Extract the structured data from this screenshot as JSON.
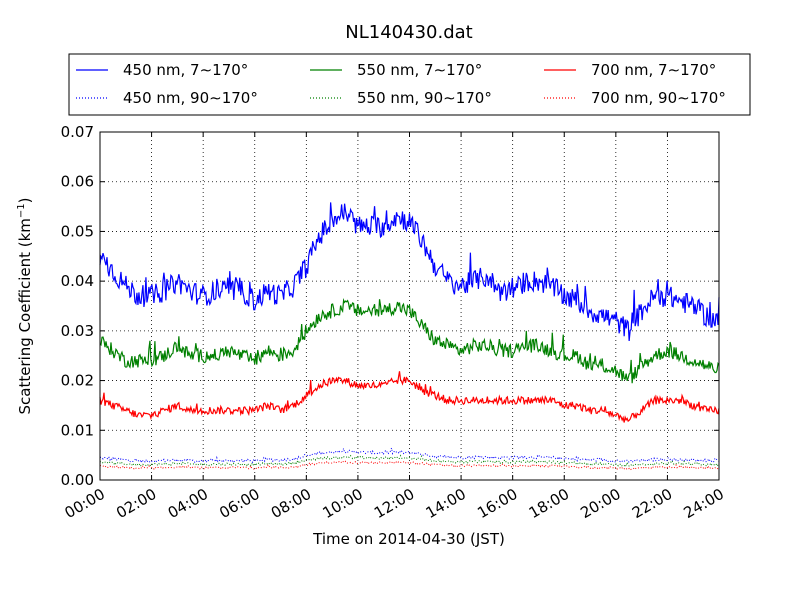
{
  "chart_data": {
    "type": "line",
    "title": "NL140430.dat",
    "xlabel": "Time on 2014-04-30 (JST)",
    "ylabel": "Scattering Coefficient (km",
    "ylabel_sup": "−1",
    "ylabel_close": ")",
    "x_ticks": [
      "00:00",
      "02:00",
      "04:00",
      "06:00",
      "08:00",
      "10:00",
      "12:00",
      "14:00",
      "16:00",
      "18:00",
      "20:00",
      "22:00",
      "24:00"
    ],
    "y_ticks": [
      "0.00",
      "0.01",
      "0.02",
      "0.03",
      "0.04",
      "0.05",
      "0.06",
      "0.07"
    ],
    "xlim_hours": [
      0,
      24
    ],
    "ylim": [
      0,
      0.07
    ],
    "grid": true,
    "legend_placement": "top, above plot",
    "x_hours": [
      0,
      0.5,
      1,
      1.5,
      2,
      2.5,
      3,
      3.5,
      4,
      4.5,
      5,
      5.5,
      6,
      6.5,
      7,
      7.5,
      8,
      8.5,
      9,
      9.5,
      10,
      10.5,
      11,
      11.5,
      12,
      12.5,
      13,
      13.5,
      14,
      14.5,
      15,
      15.5,
      16,
      16.5,
      17,
      17.5,
      18,
      18.5,
      19,
      19.5,
      20,
      20.5,
      21,
      21.5,
      22,
      22.5,
      23,
      23.5,
      24
    ],
    "series": [
      {
        "name": "450 nm, 7∼170°",
        "color": "#0000ff",
        "style": "solid",
        "noise": 0.0022,
        "values": [
          0.045,
          0.042,
          0.039,
          0.037,
          0.037,
          0.038,
          0.04,
          0.038,
          0.037,
          0.038,
          0.038,
          0.038,
          0.036,
          0.038,
          0.037,
          0.039,
          0.043,
          0.049,
          0.052,
          0.054,
          0.051,
          0.051,
          0.051,
          0.053,
          0.052,
          0.048,
          0.043,
          0.04,
          0.039,
          0.04,
          0.041,
          0.038,
          0.038,
          0.04,
          0.04,
          0.039,
          0.037,
          0.036,
          0.034,
          0.033,
          0.032,
          0.03,
          0.034,
          0.037,
          0.037,
          0.036,
          0.035,
          0.033,
          0.032
        ]
      },
      {
        "name": "550 nm, 7∼170°",
        "color": "#008000",
        "style": "solid",
        "noise": 0.0014,
        "values": [
          0.028,
          0.026,
          0.024,
          0.024,
          0.024,
          0.025,
          0.027,
          0.025,
          0.025,
          0.025,
          0.026,
          0.025,
          0.024,
          0.026,
          0.025,
          0.026,
          0.03,
          0.033,
          0.034,
          0.035,
          0.034,
          0.034,
          0.034,
          0.035,
          0.034,
          0.031,
          0.028,
          0.027,
          0.026,
          0.027,
          0.027,
          0.026,
          0.026,
          0.027,
          0.027,
          0.026,
          0.025,
          0.025,
          0.023,
          0.023,
          0.022,
          0.02,
          0.023,
          0.025,
          0.026,
          0.025,
          0.024,
          0.023,
          0.022
        ]
      },
      {
        "name": "700 nm, 7∼170°",
        "color": "#ff0000",
        "style": "solid",
        "noise": 0.0008,
        "values": [
          0.016,
          0.015,
          0.014,
          0.013,
          0.013,
          0.014,
          0.015,
          0.014,
          0.014,
          0.014,
          0.014,
          0.014,
          0.014,
          0.015,
          0.014,
          0.015,
          0.017,
          0.019,
          0.02,
          0.02,
          0.019,
          0.019,
          0.019,
          0.02,
          0.02,
          0.018,
          0.017,
          0.016,
          0.016,
          0.016,
          0.016,
          0.016,
          0.016,
          0.016,
          0.016,
          0.016,
          0.015,
          0.015,
          0.014,
          0.014,
          0.013,
          0.012,
          0.014,
          0.016,
          0.016,
          0.016,
          0.015,
          0.014,
          0.014
        ]
      },
      {
        "name": "450 nm, 90∼170°",
        "color": "#0000ff",
        "style": "dotted",
        "noise": 0.0003,
        "values": [
          0.0045,
          0.0042,
          0.004,
          0.0038,
          0.0038,
          0.0039,
          0.004,
          0.0039,
          0.0038,
          0.0039,
          0.0039,
          0.0039,
          0.0038,
          0.0041,
          0.004,
          0.0042,
          0.0048,
          0.0054,
          0.0056,
          0.0058,
          0.0056,
          0.0055,
          0.0055,
          0.0056,
          0.0055,
          0.0052,
          0.0048,
          0.0046,
          0.0045,
          0.0046,
          0.0046,
          0.0045,
          0.0045,
          0.0046,
          0.0046,
          0.0045,
          0.0043,
          0.0042,
          0.0041,
          0.004,
          0.0039,
          0.0037,
          0.0039,
          0.0041,
          0.0042,
          0.0041,
          0.004,
          0.0039,
          0.0038
        ]
      },
      {
        "name": "550 nm, 90∼170°",
        "color": "#008000",
        "style": "dotted",
        "noise": 0.00025,
        "values": [
          0.0036,
          0.0034,
          0.0032,
          0.0031,
          0.0031,
          0.0032,
          0.0033,
          0.0032,
          0.0031,
          0.0032,
          0.0032,
          0.0032,
          0.0031,
          0.0033,
          0.0032,
          0.0034,
          0.0039,
          0.0043,
          0.0045,
          0.0046,
          0.0045,
          0.0044,
          0.0044,
          0.0045,
          0.0044,
          0.0042,
          0.0039,
          0.0037,
          0.0036,
          0.0037,
          0.0037,
          0.0036,
          0.0036,
          0.0037,
          0.0037,
          0.0036,
          0.0035,
          0.0034,
          0.0033,
          0.0032,
          0.0031,
          0.0029,
          0.0031,
          0.0033,
          0.0034,
          0.0033,
          0.0032,
          0.0031,
          0.003
        ]
      },
      {
        "name": "700 nm, 90∼170°",
        "color": "#ff0000",
        "style": "dotted",
        "noise": 0.0002,
        "values": [
          0.0028,
          0.0026,
          0.0025,
          0.0024,
          0.0024,
          0.0025,
          0.0026,
          0.0025,
          0.0024,
          0.0025,
          0.0025,
          0.0025,
          0.0024,
          0.0026,
          0.0025,
          0.0026,
          0.003,
          0.0034,
          0.0035,
          0.0036,
          0.0035,
          0.0035,
          0.0035,
          0.0035,
          0.0035,
          0.0033,
          0.0031,
          0.0029,
          0.0028,
          0.0029,
          0.0029,
          0.0028,
          0.0028,
          0.0029,
          0.0029,
          0.0028,
          0.0027,
          0.0026,
          0.0025,
          0.0025,
          0.0024,
          0.0022,
          0.0024,
          0.0026,
          0.0026,
          0.0026,
          0.0025,
          0.0024,
          0.0023
        ]
      }
    ]
  }
}
